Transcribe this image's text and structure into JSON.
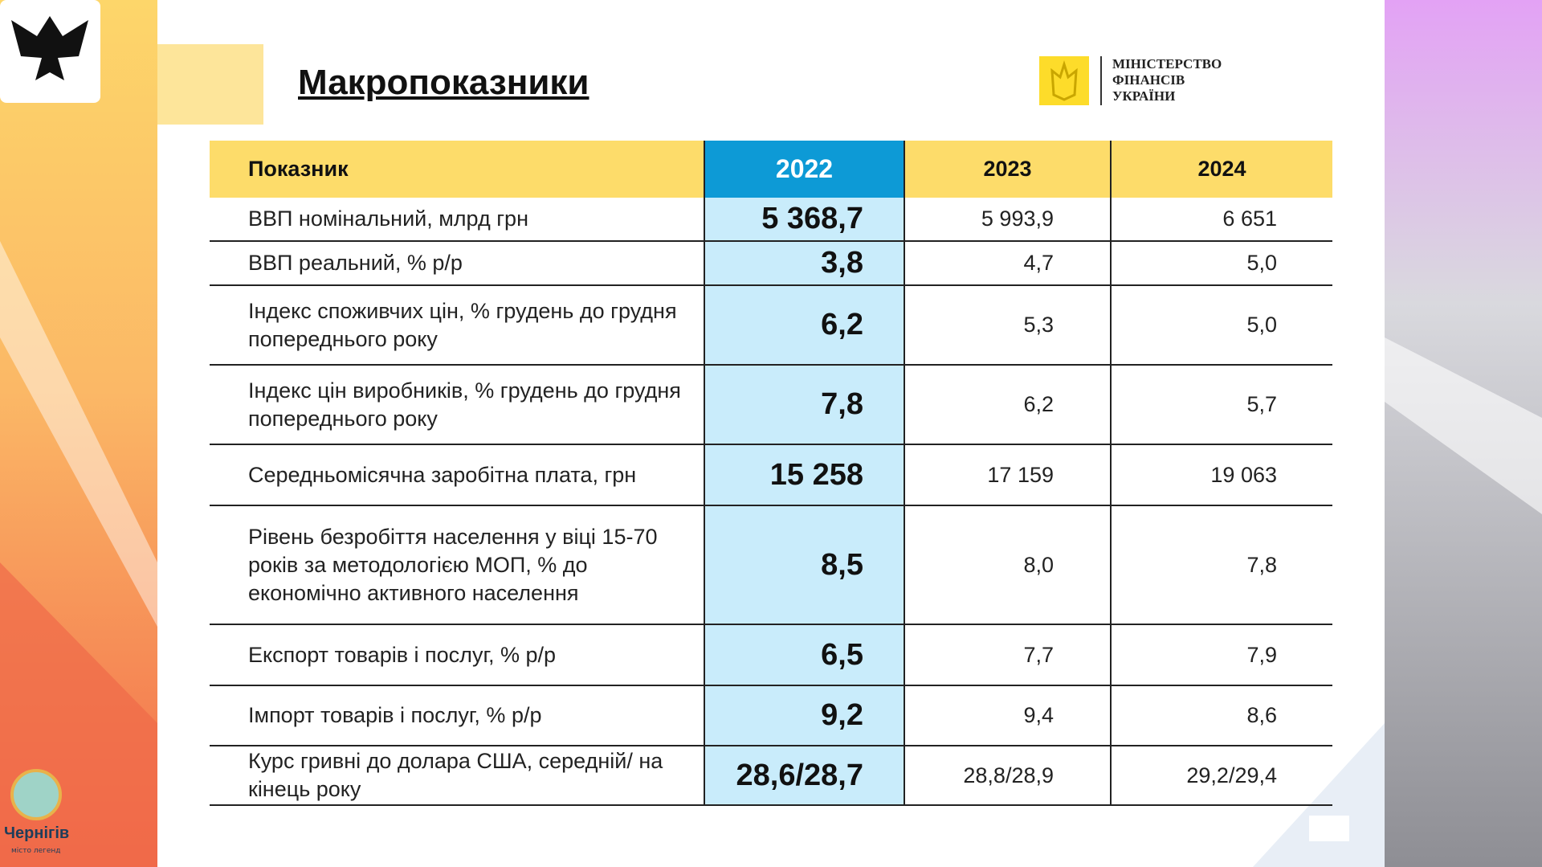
{
  "header": {
    "title": "Макропоказники",
    "ministry": [
      "МІНІСТЕРСТВО",
      "ФІНАНСІВ",
      "УКРАЇНИ"
    ],
    "city": "Чернігів",
    "city_motto": "місто легенд"
  },
  "table": {
    "columns": [
      "Показник",
      "2022",
      "2023",
      "2024"
    ],
    "rows": [
      [
        "ВВП номінальний, млрд грн",
        "5 368,7",
        "5 993,9",
        "6 651"
      ],
      [
        "ВВП реальний,  % р/р",
        "3,8",
        "4,7",
        "5,0"
      ],
      [
        "Індекс споживчих цін, % грудень до грудня попереднього року",
        "6,2",
        "5,3",
        "5,0"
      ],
      [
        "Індекс цін виробників, % грудень до грудня попереднього року",
        "7,8",
        "6,2",
        "5,7"
      ],
      [
        "Середньомісячна заробітна плата, грн",
        "15 258",
        "17 159",
        "19 063"
      ],
      [
        "Рівень безробіття населення у віці 15-70 років за методологією МОП, % до економічно активного населення",
        "8,5",
        "8,0",
        "7,8"
      ],
      [
        "Експорт товарів і послуг, % р/р",
        "6,5",
        "7,7",
        "7,9"
      ],
      [
        "Імпорт товарів і послуг, % р/р",
        "9,2",
        "9,4",
        "8,6"
      ],
      [
        "Курс гривні до долара США, середній/ на кінець року",
        "28,6/28,7",
        "28,8/28,9",
        "29,2/29,4"
      ]
    ]
  }
}
